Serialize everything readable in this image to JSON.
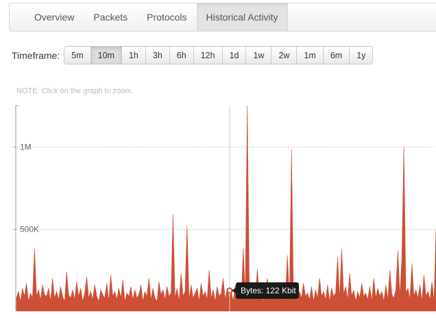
{
  "tabs": [
    {
      "label": "Overview",
      "active": false
    },
    {
      "label": "Packets",
      "active": false
    },
    {
      "label": "Protocols",
      "active": false
    },
    {
      "label": "Historical Activity",
      "active": true
    }
  ],
  "timeframe": {
    "label": "Timeframe:",
    "options": [
      "5m",
      "10m",
      "1h",
      "3h",
      "6h",
      "12h",
      "1d",
      "1w",
      "2w",
      "1m",
      "6m",
      "1y"
    ],
    "selected": "10m"
  },
  "note": "NOTE: Click on the graph to zoom.",
  "colors": {
    "area": "#cc4f36",
    "grid": "#c8c8c8",
    "tooltip_bg": "#1a1a1a"
  },
  "tooltip": {
    "text": "Bytes: 122 Kbit"
  },
  "chart_data": {
    "type": "area",
    "series_label": "Bytes",
    "y_ticks": [
      {
        "value": 500000,
        "label": "500K"
      },
      {
        "value": 1000000,
        "label": "1M"
      }
    ],
    "ylim": [
      0,
      1250000
    ],
    "grid": true,
    "hover_value": 122000,
    "values": [
      80000,
      120000,
      60000,
      140000,
      90000,
      170000,
      60000,
      110000,
      80000,
      380000,
      90000,
      130000,
      70000,
      160000,
      100000,
      90000,
      140000,
      60000,
      200000,
      80000,
      120000,
      70000,
      150000,
      90000,
      60000,
      240000,
      100000,
      80000,
      130000,
      70000,
      180000,
      90000,
      140000,
      60000,
      110000,
      210000,
      80000,
      120000,
      70000,
      160000,
      90000,
      60000,
      130000,
      100000,
      80000,
      170000,
      60000,
      220000,
      90000,
      120000,
      70000,
      140000,
      80000,
      190000,
      60000,
      110000,
      90000,
      150000,
      70000,
      130000,
      80000,
      100000,
      160000,
      60000,
      120000,
      90000,
      200000,
      70000,
      140000,
      80000,
      60000,
      180000,
      100000,
      130000,
      70000,
      150000,
      90000,
      110000,
      590000,
      80000,
      140000,
      60000,
      230000,
      90000,
      120000,
      520000,
      70000,
      160000,
      80000,
      110000,
      140000,
      60000,
      170000,
      90000,
      120000,
      70000,
      250000,
      80000,
      130000,
      60000,
      150000,
      90000,
      110000,
      200000,
      70000,
      140000,
      80000,
      120000,
      60000,
      160000,
      90000,
      130000,
      70000,
      380000,
      100000,
      1260000,
      150000,
      90000,
      120000,
      70000,
      260000,
      80000,
      140000,
      60000,
      110000,
      200000,
      90000,
      130000,
      70000,
      160000,
      80000,
      120000,
      60000,
      150000,
      90000,
      340000,
      70000,
      980000,
      100000,
      140000,
      60000,
      120000,
      80000,
      170000,
      90000,
      110000,
      70000,
      150000,
      60000,
      130000,
      80000,
      200000,
      90000,
      120000,
      70000,
      160000,
      60000,
      140000,
      90000,
      110000,
      330000,
      80000,
      380000,
      100000,
      150000,
      70000,
      230000,
      90000,
      130000,
      60000,
      120000,
      80000,
      170000,
      90000,
      110000,
      70000,
      150000,
      60000,
      200000,
      80000,
      140000,
      90000,
      120000,
      60000,
      160000,
      70000,
      250000,
      100000,
      80000,
      130000,
      370000,
      90000,
      320000,
      1000000,
      110000,
      140000,
      70000,
      290000,
      90000,
      130000,
      80000,
      160000,
      60000,
      220000,
      90000,
      120000,
      70000,
      180000,
      60000,
      500000
    ]
  }
}
